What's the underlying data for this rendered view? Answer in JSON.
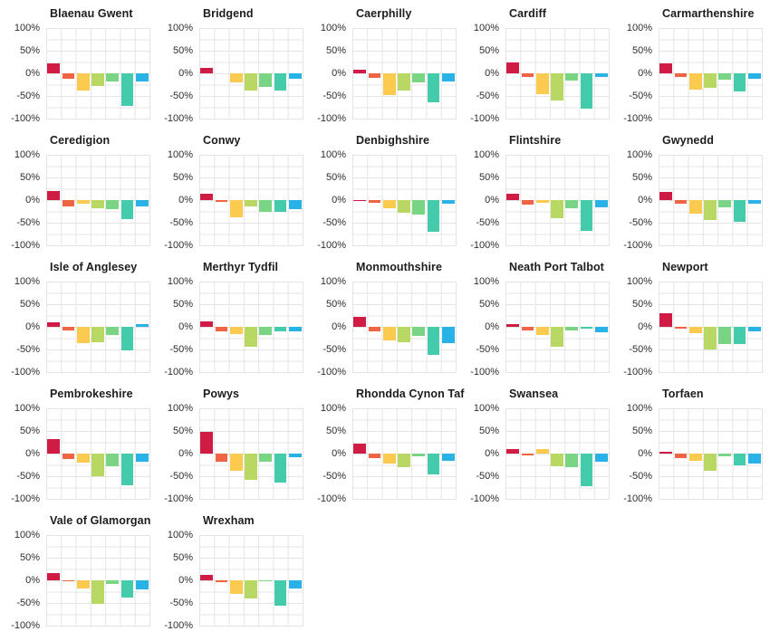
{
  "page": {
    "background": "#ffffff",
    "grid_color": "#e4e4e4",
    "title_color": "#1c1c1c",
    "tick_color": "#2e2e2e"
  },
  "chart_data": {
    "type": "bar",
    "layout": "small-multiples-facet-grid",
    "grid": "on",
    "columns": 5,
    "ylim": [
      -100,
      100
    ],
    "y_tick_labels": [
      "100%",
      "50%",
      "0%",
      "-50%",
      "-100%"
    ],
    "y_tick_values": [
      100,
      50,
      0,
      -50,
      -100
    ],
    "categories": [
      "bar-1",
      "bar-2",
      "bar-3",
      "bar-4",
      "bar-5",
      "bar-6",
      "bar-7"
    ],
    "colors": [
      "#d01c45",
      "#ee6445",
      "#fbca4e",
      "#b8d763",
      "#79d484",
      "#43cbab",
      "#28b2e6"
    ],
    "unit": "%",
    "facets": [
      {
        "title": "Blaenau Gwent",
        "values": [
          22,
          -12,
          -38,
          -28,
          -17,
          -72,
          -18
        ]
      },
      {
        "title": "Bridgend",
        "values": [
          12,
          0,
          -20,
          -38,
          -30,
          -38,
          -12
        ]
      },
      {
        "title": "Caerphilly",
        "values": [
          8,
          -10,
          -47,
          -38,
          -20,
          -63,
          -18
        ]
      },
      {
        "title": "Cardiff",
        "values": [
          25,
          -8,
          -45,
          -60,
          -15,
          -78,
          -8
        ]
      },
      {
        "title": "Carmarthenshire",
        "values": [
          22,
          -8,
          -35,
          -32,
          -13,
          -40,
          -12
        ]
      },
      {
        "title": "Ceredigion",
        "values": [
          20,
          -13,
          -8,
          -18,
          -20,
          -42,
          -13
        ]
      },
      {
        "title": "Conwy",
        "values": [
          15,
          -3,
          -38,
          -13,
          -25,
          -25,
          -20
        ]
      },
      {
        "title": "Denbighshire",
        "values": [
          -1,
          -5,
          -17,
          -28,
          -32,
          -70,
          -7
        ]
      },
      {
        "title": "Flintshire",
        "values": [
          15,
          -10,
          -5,
          -40,
          -17,
          -67,
          -15
        ]
      },
      {
        "title": "Gwynedd",
        "values": [
          18,
          -7,
          -30,
          -43,
          -15,
          -47,
          -8
        ]
      },
      {
        "title": "Isle of Anglesey",
        "values": [
          10,
          -8,
          -35,
          -33,
          -17,
          -52,
          7
        ]
      },
      {
        "title": "Merthyr Tydfil",
        "values": [
          12,
          -10,
          -15,
          -43,
          -17,
          -10,
          -10
        ]
      },
      {
        "title": "Monmouthshire",
        "values": [
          22,
          -10,
          -30,
          -33,
          -20,
          -62,
          -35
        ]
      },
      {
        "title": "Neath Port Talbot",
        "values": [
          7,
          -7,
          -18,
          -43,
          -8,
          -4,
          -12
        ]
      },
      {
        "title": "Newport",
        "values": [
          30,
          -3,
          -13,
          -50,
          -37,
          -37,
          -10
        ]
      },
      {
        "title": "Pembrokeshire",
        "values": [
          33,
          -12,
          -20,
          -50,
          -27,
          -70,
          -17
        ]
      },
      {
        "title": "Powys",
        "values": [
          48,
          -18,
          -38,
          -58,
          -17,
          -63,
          -8
        ]
      },
      {
        "title": "Rhondda Cynon Taf",
        "values": [
          22,
          -10,
          -22,
          -30,
          -5,
          -45,
          -15
        ]
      },
      {
        "title": "Swansea",
        "values": [
          10,
          -3,
          10,
          -28,
          -30,
          -72,
          -17
        ]
      },
      {
        "title": "Torfaen",
        "values": [
          5,
          -10,
          -15,
          -37,
          -5,
          -25,
          -22
        ]
      },
      {
        "title": "Vale of Glamorgan",
        "values": [
          17,
          -1,
          -17,
          -52,
          -7,
          -38,
          -20
        ]
      },
      {
        "title": "Wrexham",
        "values": [
          13,
          -3,
          -30,
          -40,
          -1,
          -55,
          -17
        ]
      }
    ]
  }
}
